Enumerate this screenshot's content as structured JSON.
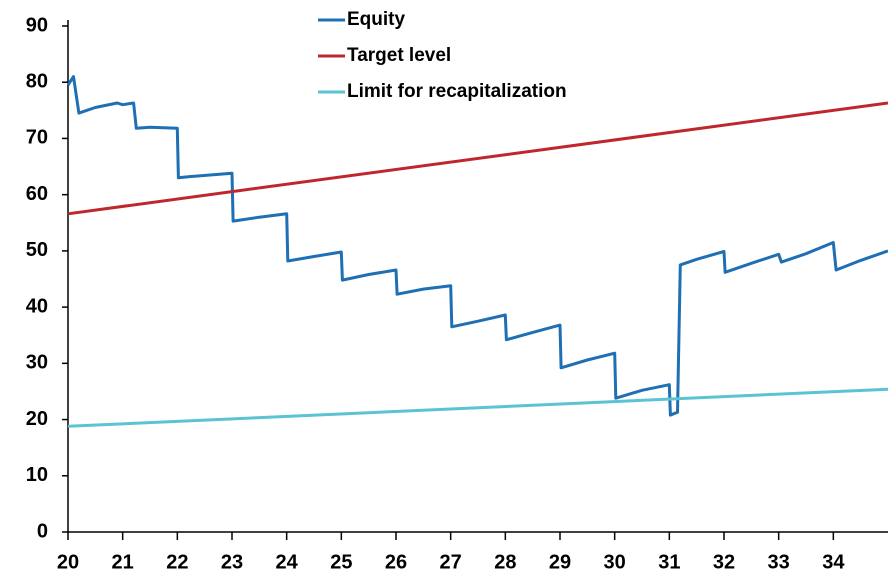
{
  "chart_data": {
    "type": "line",
    "series": [
      {
        "name": "Equity",
        "color": "#1f6fb4",
        "x": [
          20.0,
          20.1,
          20.2,
          20.5,
          20.9,
          21.0,
          21.2,
          21.25,
          21.5,
          22.0,
          22.02,
          22.2,
          22.6,
          23.0,
          23.02,
          23.5,
          24.0,
          24.02,
          24.5,
          25.0,
          25.02,
          25.5,
          26.0,
          26.02,
          26.5,
          27.0,
          27.02,
          27.5,
          28.0,
          28.02,
          28.5,
          29.0,
          29.02,
          29.5,
          30.0,
          30.02,
          30.5,
          31.0,
          31.02,
          31.15,
          31.2,
          31.5,
          32.0,
          32.02,
          32.5,
          33.0,
          33.05,
          33.5,
          34.0,
          34.05,
          34.5,
          35.0
        ],
        "values": [
          79.5,
          81,
          74.5,
          75.5,
          76.3,
          76,
          76.3,
          71.8,
          72,
          71.8,
          63,
          63.2,
          63.5,
          63.8,
          55.3,
          56,
          56.6,
          48.2,
          49,
          49.8,
          44.8,
          45.8,
          46.6,
          42.3,
          43.2,
          43.8,
          36.5,
          37.5,
          38.6,
          34.2,
          35.5,
          36.8,
          29.2,
          30.6,
          31.8,
          23.8,
          25.2,
          26.2,
          20.8,
          21.3,
          47.5,
          48.5,
          49.9,
          46.2,
          47.8,
          49.4,
          48.0,
          49.5,
          51.5,
          46.6,
          48.3,
          50
        ]
      },
      {
        "name": "Target level",
        "color": "#c0272d",
        "x": [
          20,
          35
        ],
        "values": [
          56.6,
          76.3
        ]
      },
      {
        "name": "Limit for recapitalization",
        "color": "#5bc4d1",
        "x": [
          20,
          35
        ],
        "values": [
          18.8,
          25.4
        ]
      }
    ],
    "xlim": [
      20,
      35
    ],
    "xticks": [
      20,
      21,
      22,
      23,
      24,
      25,
      26,
      27,
      28,
      29,
      30,
      31,
      32,
      33,
      34
    ],
    "ylim": [
      0,
      90
    ],
    "yticks": [
      0,
      10,
      20,
      30,
      40,
      50,
      60,
      70,
      80,
      90
    ],
    "grid": false,
    "legend": "top"
  }
}
